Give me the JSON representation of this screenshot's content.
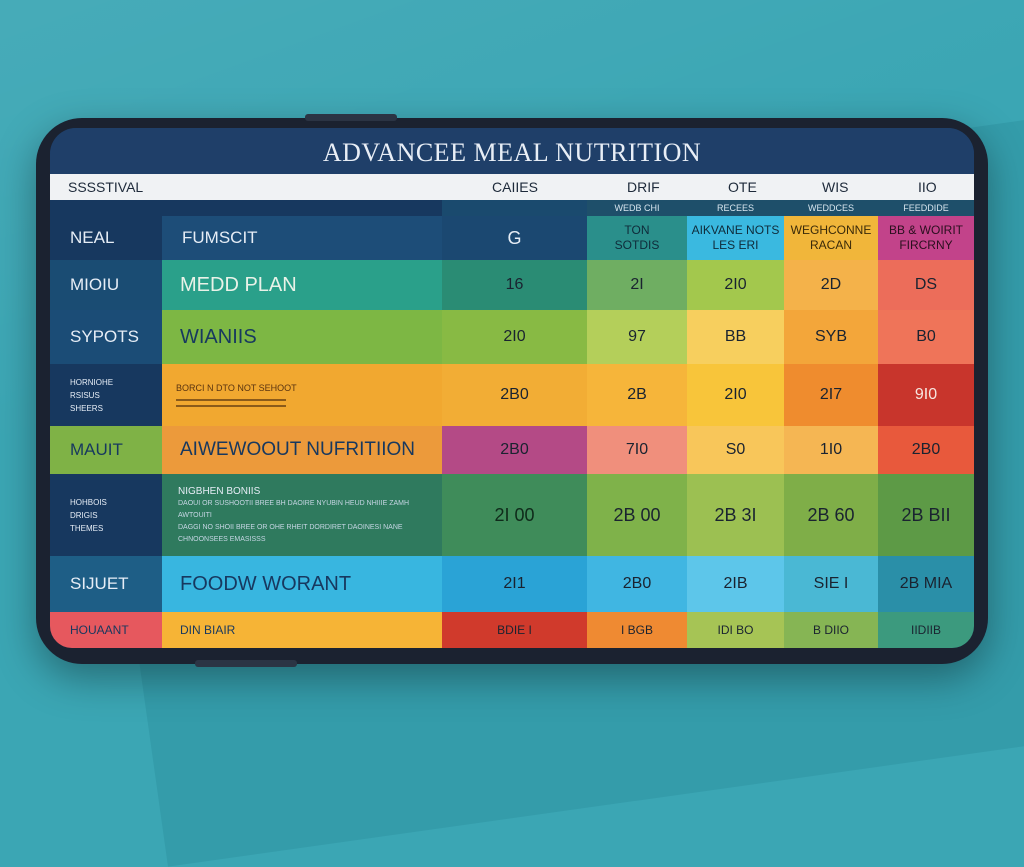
{
  "title": "ADVANCEE MEAL NUTRITION",
  "header": {
    "col0": "SSSSTIVAL",
    "col_cal": "CAIIES",
    "col1": "DRIF",
    "col2": "OTE",
    "col3": "WIS",
    "col4": "IIO"
  },
  "subheader": {
    "c1": "WEDB CHI",
    "c2": "RECEES",
    "c3": "WEDDCES",
    "c4": "FEEDDIDE"
  },
  "rows": [
    {
      "label": "NEAL",
      "meal": "FUMSCIT",
      "cal": "G",
      "c1": "TON\nSOTDIS",
      "c2": "AIKVANE NOTS\nLES ERI",
      "c3": "WEGHCONNE\nRACAN",
      "c4": "BB & WOIRIT\nFIRCRNY"
    },
    {
      "label": "MIOIU",
      "meal": "MEDD PLAN",
      "cal": "16",
      "c1": "2I",
      "c2": "2I0",
      "c3": "2D",
      "c4": "DS"
    },
    {
      "label": "SYPOTS",
      "meal": "WIANIIS",
      "cal": "2I0",
      "c1": "97",
      "c2": "BB",
      "c3": "SYB",
      "c4": "B0"
    },
    {
      "label": "HORNIOHE\nRSISUS\nSHEERS",
      "meal": "BORCI N DTO NOT SEHOOT",
      "cal": "2B0",
      "c1": "2B",
      "c2": "2I0",
      "c3": "2I7",
      "c4": "9I0"
    },
    {
      "label": "MAUIT",
      "meal": "AIWEWOOUT NUFRITIION",
      "cal": "2B0",
      "c1": "7I0",
      "c2": "S0",
      "c3": "1I0",
      "c4": "2B0"
    },
    {
      "label": "HOHBOIS\nDRIGIS\nTHEMES",
      "meal": "NIGBHEN BONIIS",
      "meal_sub": [
        "DAOUI OR SUSHOOTII BREE BH DAOIRE NYUBIN HEUD NHIIIE ZAMH AWTOUITI",
        "DAGGI NO SHOII BREE OR OHE RHEIT DORDIRET DAOINESI NANE",
        "CHNOONSEES EMASISSS"
      ],
      "cal": "2I 00",
      "c1": "2B 00",
      "c2": "2B 3I",
      "c3": "2B 60",
      "c4": "2B BII"
    },
    {
      "label": "SIJUET",
      "meal": "FOODW WORANT",
      "cal": "2I1",
      "c1": "2B0",
      "c2": "2IB",
      "c3": "SIE I",
      "c4": "2B MIA"
    },
    {
      "label": "HOUAANT",
      "meal": "DIN BIAIR",
      "cal": "BDIE I",
      "c1": "I BGB",
      "c2": "IDI BO",
      "c3": "B DIIO",
      "c4": "IIDIIB"
    }
  ],
  "colors": {
    "background": "#3ba6b4",
    "header_navy": "#17385f",
    "teal": "#2e9a8a",
    "green": "#7fb045",
    "orange": "#f0a830",
    "magenta": "#b8417c",
    "sky": "#3fb7dc",
    "red": "#d0332c"
  }
}
